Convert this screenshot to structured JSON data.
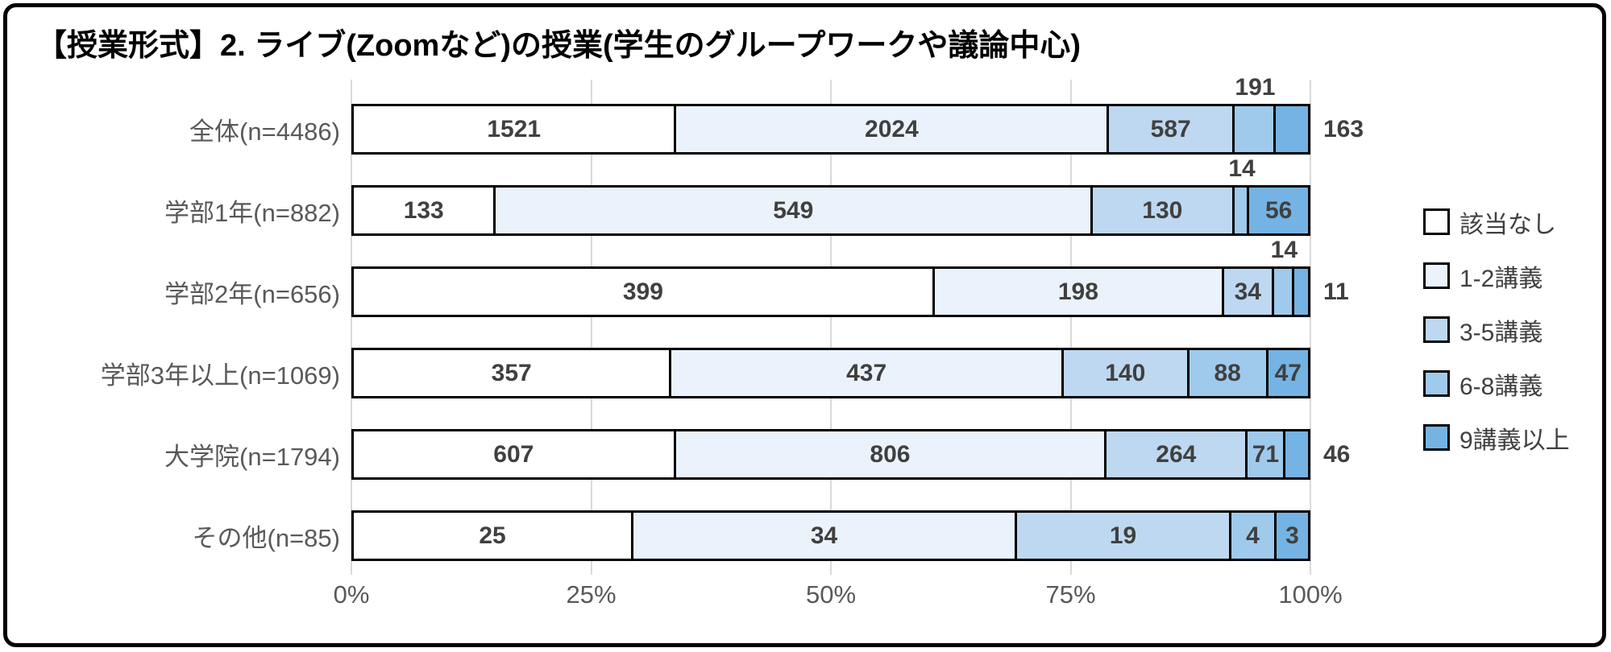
{
  "title": "【授業形式】2. ライブ(Zoomなど)の授業(学生のグループワークや議論中心)",
  "colors": {
    "segment_border": "#000000",
    "data_label": "#404040",
    "category_label": "#595959",
    "gridline": "#D9D9D9",
    "frame_border": "#000000"
  },
  "chart_data": {
    "type": "bar",
    "subtype": "100%-stacked-horizontal",
    "title": "【授業形式】2. ライブ(Zoomなど)の授業(学生のグループワークや議論中心)",
    "categories": [
      "全体(n=4486)",
      "学部1年(n=882)",
      "学部2年(n=656)",
      "学部3年以上(n=1069)",
      "大学院(n=1794)",
      "その他(n=85)"
    ],
    "series": [
      {
        "name": "該当なし",
        "color": "#FFFFFF",
        "values": [
          1521,
          133,
          399,
          357,
          607,
          25
        ]
      },
      {
        "name": "1-2講義",
        "color": "#EAF3FB",
        "values": [
          2024,
          549,
          198,
          437,
          806,
          34
        ]
      },
      {
        "name": "3-5講義",
        "color": "#BDD8F0",
        "values": [
          587,
          130,
          34,
          140,
          264,
          19
        ]
      },
      {
        "name": "6-8講義",
        "color": "#9FCAEC",
        "values": [
          191,
          14,
          14,
          88,
          71,
          4
        ]
      },
      {
        "name": "9講義以上",
        "color": "#74B3E3",
        "values": [
          163,
          56,
          11,
          47,
          46,
          3
        ]
      }
    ],
    "label_positions": [
      [
        "inside",
        "inside",
        "inside",
        "above",
        "right"
      ],
      [
        "inside",
        "inside",
        "inside",
        "above",
        "inside"
      ],
      [
        "inside",
        "inside",
        "inside",
        "above",
        "right"
      ],
      [
        "inside",
        "inside",
        "inside",
        "inside",
        "inside"
      ],
      [
        "inside",
        "inside",
        "inside",
        "inside",
        "right"
      ],
      [
        "inside",
        "inside",
        "inside",
        "inside",
        "inside"
      ]
    ],
    "x_axis": {
      "ticks": [
        "0%",
        "25%",
        "50%",
        "75%",
        "100%"
      ],
      "min": 0,
      "max": 100,
      "grid": true
    },
    "legend": {
      "position": "right",
      "entries": [
        "該当なし",
        "1-2講義",
        "3-5講義",
        "6-8講義",
        "9講義以上"
      ]
    }
  }
}
